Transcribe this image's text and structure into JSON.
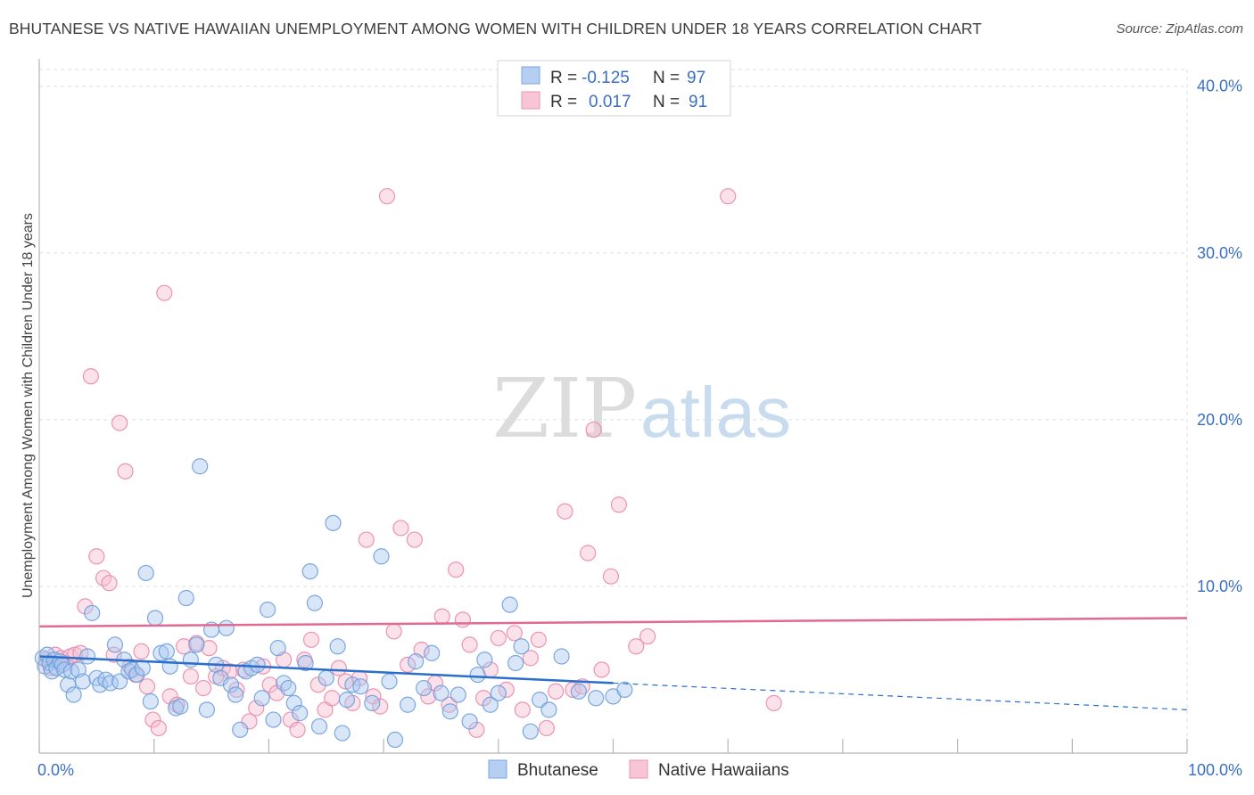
{
  "title": "BHUTANESE VS NATIVE HAWAIIAN UNEMPLOYMENT AMONG WOMEN WITH CHILDREN UNDER 18 YEARS CORRELATION CHART",
  "source": "Source: ZipAtlas.com",
  "watermark": {
    "zip": "ZIP",
    "atlas": "atlas"
  },
  "legend_top": [
    {
      "r_label": "R =",
      "r_value": "-0.125",
      "n_label": "N =",
      "n_value": "97"
    },
    {
      "r_label": "R =",
      "r_value": "0.017",
      "n_label": "N =",
      "n_value": "91"
    }
  ],
  "colors": {
    "blue_fill": "#a9c8f0",
    "blue_stroke": "#6f9fdc",
    "blue_line": "#2a6fcb",
    "pink_fill": "#f6bcd0",
    "pink_stroke": "#e98aab",
    "pink_line": "#e06a91",
    "grid": "#dddddd",
    "tick": "#3a6fc4"
  },
  "chart_data": {
    "type": "scatter",
    "title": "BHUTANESE VS NATIVE HAWAIIAN UNEMPLOYMENT AMONG WOMEN WITH CHILDREN UNDER 18 YEARS CORRELATION CHART",
    "xlabel": "",
    "ylabel": "Unemployment Among Women with Children Under 18 years",
    "xlim": [
      0,
      100
    ],
    "ylim": [
      0,
      41
    ],
    "x_ticks": [
      "0.0%",
      "100.0%"
    ],
    "y_ticks": [
      {
        "value": 10,
        "label": "10.0%"
      },
      {
        "value": 20,
        "label": "20.0%"
      },
      {
        "value": 30,
        "label": "30.0%"
      },
      {
        "value": 40,
        "label": "40.0%"
      }
    ],
    "grid": true,
    "legend_position": "top-center",
    "series": [
      {
        "name": "Bhutanese",
        "r": -0.125,
        "n": 97,
        "trend": {
          "x0": 0,
          "y0": 5.8,
          "x1": 50,
          "y1": 4.2,
          "dash_to_x": 100,
          "dash_to_y": 2.6
        },
        "points": [
          [
            0.3,
            5.7
          ],
          [
            0.5,
            5.2
          ],
          [
            0.7,
            5.9
          ],
          [
            0.9,
            5.4
          ],
          [
            1.1,
            4.9
          ],
          [
            1.3,
            5.6
          ],
          [
            1.5,
            5.1
          ],
          [
            1.8,
            5.5
          ],
          [
            2.0,
            5.3
          ],
          [
            2.2,
            5.0
          ],
          [
            2.5,
            4.1
          ],
          [
            2.8,
            4.9
          ],
          [
            3.0,
            3.5
          ],
          [
            3.4,
            5.0
          ],
          [
            3.8,
            4.3
          ],
          [
            4.2,
            5.8
          ],
          [
            4.6,
            8.4
          ],
          [
            5.0,
            4.5
          ],
          [
            5.3,
            4.1
          ],
          [
            5.8,
            4.4
          ],
          [
            6.2,
            4.2
          ],
          [
            6.6,
            6.5
          ],
          [
            7.0,
            4.3
          ],
          [
            7.4,
            5.6
          ],
          [
            7.8,
            4.9
          ],
          [
            8.1,
            5.0
          ],
          [
            8.5,
            4.7
          ],
          [
            9.0,
            5.1
          ],
          [
            9.3,
            10.8
          ],
          [
            9.7,
            3.1
          ],
          [
            10.1,
            8.1
          ],
          [
            10.6,
            6.0
          ],
          [
            11.1,
            6.1
          ],
          [
            11.4,
            5.2
          ],
          [
            11.9,
            2.7
          ],
          [
            12.3,
            2.8
          ],
          [
            12.8,
            9.3
          ],
          [
            13.2,
            5.6
          ],
          [
            13.7,
            6.5
          ],
          [
            14.0,
            17.2
          ],
          [
            14.6,
            2.6
          ],
          [
            15.0,
            7.4
          ],
          [
            15.4,
            5.3
          ],
          [
            15.8,
            4.5
          ],
          [
            16.3,
            7.5
          ],
          [
            16.7,
            4.1
          ],
          [
            17.1,
            3.5
          ],
          [
            17.5,
            1.4
          ],
          [
            18.0,
            4.9
          ],
          [
            18.5,
            5.1
          ],
          [
            19.0,
            5.3
          ],
          [
            19.4,
            3.3
          ],
          [
            19.9,
            8.6
          ],
          [
            20.4,
            2.0
          ],
          [
            20.8,
            6.3
          ],
          [
            21.3,
            4.2
          ],
          [
            21.7,
            3.9
          ],
          [
            22.2,
            3.0
          ],
          [
            22.7,
            2.4
          ],
          [
            23.2,
            5.4
          ],
          [
            23.6,
            10.9
          ],
          [
            24.0,
            9.0
          ],
          [
            24.4,
            1.6
          ],
          [
            25.0,
            4.5
          ],
          [
            25.6,
            13.8
          ],
          [
            26.0,
            6.4
          ],
          [
            26.4,
            1.2
          ],
          [
            26.8,
            3.2
          ],
          [
            27.3,
            4.1
          ],
          [
            28.0,
            4.0
          ],
          [
            29.0,
            3.0
          ],
          [
            29.8,
            11.8
          ],
          [
            30.5,
            4.3
          ],
          [
            31.0,
            0.8
          ],
          [
            32.1,
            2.9
          ],
          [
            32.8,
            5.5
          ],
          [
            33.5,
            3.9
          ],
          [
            34.2,
            6.0
          ],
          [
            35.0,
            3.6
          ],
          [
            35.8,
            2.5
          ],
          [
            36.5,
            3.5
          ],
          [
            37.5,
            1.9
          ],
          [
            38.2,
            4.7
          ],
          [
            38.8,
            5.6
          ],
          [
            39.3,
            2.9
          ],
          [
            40.0,
            3.6
          ],
          [
            41.0,
            8.9
          ],
          [
            41.5,
            5.4
          ],
          [
            42.0,
            6.4
          ],
          [
            42.8,
            1.3
          ],
          [
            43.6,
            3.2
          ],
          [
            44.4,
            2.6
          ],
          [
            45.5,
            5.8
          ],
          [
            47.0,
            3.7
          ],
          [
            48.5,
            3.3
          ],
          [
            50.0,
            3.4
          ],
          [
            51.0,
            3.8
          ]
        ]
      },
      {
        "name": "Native Hawaiians",
        "r": 0.017,
        "n": 91,
        "trend": {
          "x0": 0,
          "y0": 7.6,
          "x1": 100,
          "y1": 8.1
        },
        "points": [
          [
            0.6,
            5.6
          ],
          [
            1.0,
            5.1
          ],
          [
            1.4,
            5.9
          ],
          [
            1.9,
            5.7
          ],
          [
            2.3,
            5.4
          ],
          [
            2.7,
            5.8
          ],
          [
            3.1,
            5.9
          ],
          [
            3.6,
            6.0
          ],
          [
            4.0,
            8.8
          ],
          [
            4.5,
            22.6
          ],
          [
            5.0,
            11.8
          ],
          [
            5.6,
            10.5
          ],
          [
            6.1,
            10.2
          ],
          [
            6.5,
            5.9
          ],
          [
            7.0,
            19.8
          ],
          [
            7.5,
            16.9
          ],
          [
            7.9,
            5.2
          ],
          [
            8.4,
            4.7
          ],
          [
            8.9,
            6.1
          ],
          [
            9.4,
            4.0
          ],
          [
            9.9,
            2.0
          ],
          [
            10.4,
            1.5
          ],
          [
            10.9,
            27.6
          ],
          [
            11.4,
            3.4
          ],
          [
            12.0,
            2.9
          ],
          [
            12.6,
            6.4
          ],
          [
            13.2,
            4.6
          ],
          [
            13.7,
            6.6
          ],
          [
            14.3,
            3.9
          ],
          [
            14.8,
            6.3
          ],
          [
            15.4,
            4.6
          ],
          [
            16.0,
            5.1
          ],
          [
            16.6,
            4.9
          ],
          [
            17.2,
            3.8
          ],
          [
            17.8,
            5.0
          ],
          [
            18.3,
            1.9
          ],
          [
            18.9,
            2.7
          ],
          [
            19.5,
            5.2
          ],
          [
            20.1,
            4.1
          ],
          [
            20.7,
            3.6
          ],
          [
            21.3,
            5.6
          ],
          [
            21.9,
            2.0
          ],
          [
            22.5,
            1.4
          ],
          [
            23.1,
            5.6
          ],
          [
            23.7,
            6.8
          ],
          [
            24.3,
            4.1
          ],
          [
            24.9,
            2.6
          ],
          [
            25.5,
            3.3
          ],
          [
            26.1,
            5.1
          ],
          [
            26.7,
            4.3
          ],
          [
            27.3,
            3.0
          ],
          [
            27.9,
            4.5
          ],
          [
            28.5,
            12.8
          ],
          [
            29.1,
            3.4
          ],
          [
            29.7,
            2.8
          ],
          [
            30.3,
            33.4
          ],
          [
            30.9,
            7.3
          ],
          [
            31.5,
            13.5
          ],
          [
            32.1,
            5.3
          ],
          [
            32.7,
            12.8
          ],
          [
            33.3,
            6.2
          ],
          [
            33.9,
            3.4
          ],
          [
            34.5,
            4.2
          ],
          [
            35.1,
            8.2
          ],
          [
            35.7,
            2.9
          ],
          [
            36.3,
            11.0
          ],
          [
            36.9,
            8.0
          ],
          [
            37.5,
            6.5
          ],
          [
            38.1,
            1.4
          ],
          [
            38.7,
            3.3
          ],
          [
            39.3,
            5.0
          ],
          [
            40.0,
            6.9
          ],
          [
            40.7,
            3.8
          ],
          [
            41.4,
            7.2
          ],
          [
            42.1,
            2.6
          ],
          [
            42.8,
            5.7
          ],
          [
            43.5,
            6.8
          ],
          [
            44.2,
            1.5
          ],
          [
            45.0,
            3.7
          ],
          [
            45.8,
            14.5
          ],
          [
            46.5,
            3.8
          ],
          [
            47.3,
            4.0
          ],
          [
            47.8,
            12.0
          ],
          [
            48.3,
            19.4
          ],
          [
            49.0,
            5.0
          ],
          [
            49.8,
            10.6
          ],
          [
            50.5,
            14.9
          ],
          [
            52.0,
            6.4
          ],
          [
            53.0,
            7.0
          ],
          [
            60.0,
            33.4
          ],
          [
            64.0,
            3.0
          ]
        ]
      }
    ]
  },
  "bottom_legend": [
    {
      "label": "Bhutanese"
    },
    {
      "label": "Native Hawaiians"
    }
  ]
}
